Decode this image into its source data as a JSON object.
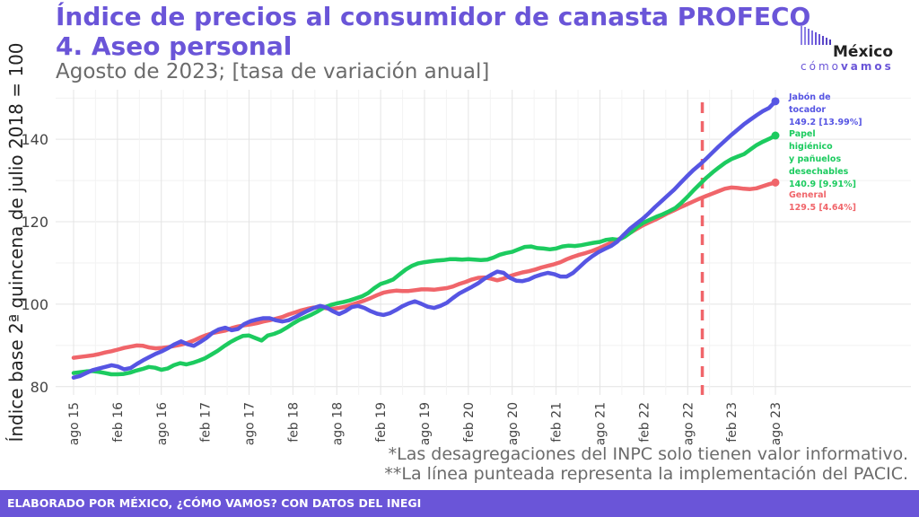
{
  "header": {
    "title_line1": "Índice de precios al consumidor de canasta PROFECO",
    "title_line2": "4. Aseo personal",
    "subtitle": "Agosto de 2023; [tasa de variación anual]"
  },
  "logo": {
    "name": "México",
    "sub_light": "cómo",
    "sub_bold": "vamos"
  },
  "notes": [
    "*Las desagregaciones del INPC solo tienen valor informativo.",
    "**La línea punteada representa la implementación del PACIC."
  ],
  "footer": {
    "text": "ELABORADO POR MÉXICO, ¿CÓMO VAMOS? CON DATOS DEL INEGI"
  },
  "colors": {
    "accent": "#6a55d8",
    "general": "#f0656a",
    "papel": "#1ccb5f",
    "jabon": "#5655e3",
    "grid": "#e8e8e8"
  },
  "chart_data": {
    "type": "line",
    "title": "Índice de precios al consumidor de canasta PROFECO",
    "ylabel": "Índice base 2ª quincena de julio 2018 = 100",
    "xlabel": "",
    "ylim": [
      78,
      152
    ],
    "yticks": [
      80,
      100,
      120,
      140
    ],
    "x_start": "2015-08",
    "x_end": "2023-08",
    "xtick_labels": [
      "ago 15",
      "feb 16",
      "ago 16",
      "feb 17",
      "ago 17",
      "feb 18",
      "ago 18",
      "feb 19",
      "ago 19",
      "feb 20",
      "ago 20",
      "feb 21",
      "ago 21",
      "feb 22",
      "ago 22",
      "feb 23",
      "ago 23"
    ],
    "vline": "2022-10",
    "grid": true,
    "series": [
      {
        "name": "General",
        "color": "#f0656a",
        "end_label": [
          "General",
          "129.5 [4.64%]"
        ],
        "values": [
          87,
          87.2,
          87.4,
          87.6,
          87.9,
          88.3,
          88.6,
          89,
          89.4,
          89.7,
          90,
          89.9,
          89.5,
          89.3,
          89.4,
          89.6,
          89.9,
          90.2,
          90.6,
          91.2,
          91.9,
          92.5,
          93,
          93.3,
          93.6,
          94.2,
          94.6,
          94.9,
          95.1,
          95.4,
          95.8,
          96.1,
          96.5,
          96.9,
          97.5,
          98,
          98.5,
          98.9,
          99.2,
          99.3,
          99,
          98.9,
          99.1,
          99.4,
          99.9,
          100.4,
          100.9,
          101.5,
          102.2,
          102.8,
          103.1,
          103.3,
          103.2,
          103.2,
          103.4,
          103.6,
          103.6,
          103.5,
          103.7,
          103.9,
          104.3,
          104.9,
          105.4,
          106,
          106.4,
          106.5,
          106.2,
          105.8,
          106.2,
          106.8,
          107.3,
          107.7,
          108,
          108.4,
          108.9,
          109.3,
          109.7,
          110.2,
          110.9,
          111.5,
          112,
          112.4,
          112.9,
          113.5,
          114.2,
          114.9,
          115.6,
          116.4,
          117.3,
          118.2,
          119.1,
          119.8,
          120.5,
          121.3,
          122.1,
          122.8,
          123.5,
          124.2,
          124.9,
          125.6,
          126.2,
          126.8,
          127.4,
          128,
          128.3,
          128.2,
          128,
          127.9,
          128.1,
          128.6,
          129.1,
          129.5
        ]
      },
      {
        "name": "Papel higiénico y pañuelos desechables",
        "color": "#1ccb5f",
        "end_label": [
          "Papel",
          "higiénico",
          "y pañuelos",
          "desechables",
          "140.9 [9.91%]"
        ],
        "values": [
          83.3,
          83.5,
          83.7,
          83.8,
          83.6,
          83.3,
          83,
          83,
          83.1,
          83.4,
          83.9,
          84.3,
          84.8,
          84.6,
          84.1,
          84.4,
          85.2,
          85.7,
          85.4,
          85.8,
          86.3,
          86.9,
          87.8,
          88.7,
          89.8,
          90.8,
          91.6,
          92.3,
          92.4,
          91.8,
          91.2,
          92.4,
          92.8,
          93.4,
          94.3,
          95.3,
          96.2,
          96.8,
          97.5,
          98.3,
          99.2,
          99.8,
          100.2,
          100.5,
          100.9,
          101.4,
          101.9,
          102.7,
          103.9,
          104.9,
          105.4,
          106,
          107.2,
          108.4,
          109.3,
          109.9,
          110.2,
          110.4,
          110.6,
          110.7,
          110.9,
          110.9,
          110.8,
          110.9,
          110.8,
          110.7,
          110.8,
          111.3,
          112,
          112.4,
          112.7,
          113.3,
          113.9,
          114,
          113.6,
          113.5,
          113.3,
          113.5,
          114,
          114.2,
          114.1,
          114.3,
          114.6,
          114.9,
          115.1,
          115.6,
          115.8,
          115.6,
          116.4,
          117.5,
          118.8,
          119.8,
          120.5,
          121.2,
          121.8,
          122.5,
          123.3,
          124.6,
          126.1,
          127.7,
          129.2,
          130.7,
          132,
          133.2,
          134.3,
          135.2,
          135.8,
          136.4,
          137.5,
          138.6,
          139.4,
          140.1,
          140.9
        ]
      },
      {
        "name": "Jabón de tocador",
        "color": "#5655e3",
        "end_label": [
          "Jabón de",
          "tocador",
          "149.2 [13.99%]"
        ],
        "values": [
          82.2,
          82.6,
          83.3,
          84,
          84.4,
          84.8,
          85.2,
          84.9,
          84.2,
          84.5,
          85.5,
          86.4,
          87.2,
          88,
          88.6,
          89.4,
          90.3,
          91,
          90.3,
          89.9,
          90.8,
          91.8,
          93.1,
          93.9,
          94.3,
          93.7,
          94,
          95.2,
          95.9,
          96.3,
          96.6,
          96.6,
          96.1,
          95.8,
          96.1,
          96.8,
          97.6,
          98.4,
          99.1,
          99.6,
          99.2,
          98.3,
          97.6,
          98.3,
          99.3,
          99.6,
          99.1,
          98.3,
          97.7,
          97.4,
          97.8,
          98.6,
          99.5,
          100.2,
          100.7,
          100.1,
          99.4,
          99.1,
          99.6,
          100.3,
          101.5,
          102.6,
          103.4,
          104.2,
          105.1,
          106.2,
          107.1,
          107.9,
          107.6,
          106.4,
          105.7,
          105.6,
          106,
          106.7,
          107.2,
          107.6,
          107.3,
          106.7,
          106.7,
          107.6,
          109,
          110.4,
          111.6,
          112.6,
          113.4,
          114.1,
          115.2,
          116.8,
          118.3,
          119.5,
          120.7,
          122.1,
          123.6,
          125,
          126.4,
          127.8,
          129.4,
          131,
          132.5,
          133.8,
          135.2,
          136.7,
          138.2,
          139.6,
          141,
          142.3,
          143.6,
          144.7,
          145.8,
          146.8,
          147.6,
          149.2
        ]
      }
    ]
  }
}
